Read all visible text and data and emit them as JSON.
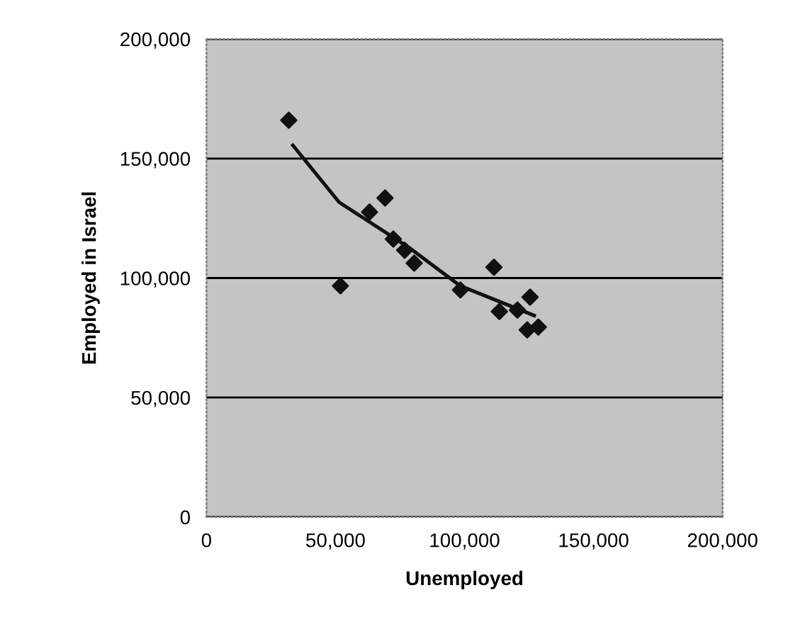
{
  "chart_data": {
    "type": "scatter",
    "xlabel": "Unemployed",
    "ylabel": "Employed in Israel",
    "xlim": [
      0,
      200000
    ],
    "ylim": [
      0,
      200000
    ],
    "xticks": [
      {
        "value": 0,
        "label": "0"
      },
      {
        "value": 50000,
        "label": "50,000"
      },
      {
        "value": 100000,
        "label": "100,000"
      },
      {
        "value": 150000,
        "label": "150,000"
      },
      {
        "value": 200000,
        "label": "200,000"
      }
    ],
    "yticks": [
      {
        "value": 0,
        "label": "0"
      },
      {
        "value": 50000,
        "label": "50,000"
      },
      {
        "value": 100000,
        "label": "100,000"
      },
      {
        "value": 150000,
        "label": "150,000"
      },
      {
        "value": 200000,
        "label": "200,000"
      }
    ],
    "grid": "y",
    "series": [
      {
        "marker": "diamond",
        "color": "#111111",
        "x": [
          31900,
          51900,
          63200,
          69200,
          72400,
          76800,
          80500,
          98400,
          111400,
          113500,
          120500,
          125400,
          124300,
          128600
        ],
        "values": [
          166000,
          96700,
          127600,
          133500,
          116300,
          111600,
          106200,
          95000,
          104500,
          86000,
          86600,
          92000,
          78300,
          79500
        ]
      },
      {
        "type": "line",
        "color": "#111111",
        "x": [
          33500,
          51400,
          78400,
          98400,
          127000
        ],
        "values": [
          155500,
          131700,
          112800,
          96700,
          84300
        ]
      }
    ]
  }
}
